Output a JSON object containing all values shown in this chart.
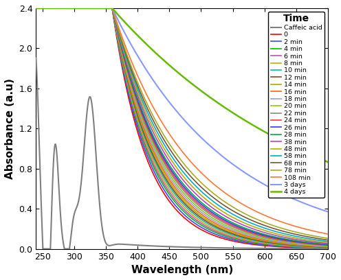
{
  "title": "Time",
  "xlabel": "Wavelength (nm)",
  "ylabel": "Absorbance (a.u)",
  "xlim": [
    240,
    700
  ],
  "ylim": [
    0.0,
    2.4
  ],
  "yticks": [
    0.0,
    0.4,
    0.8,
    1.2,
    1.6,
    2.0,
    2.4
  ],
  "xticks": [
    250,
    300,
    350,
    400,
    450,
    500,
    550,
    600,
    650,
    700
  ],
  "series": [
    {
      "label": "Caffeic acid",
      "color": "#808080",
      "lw": 1.5,
      "type": "caffeic"
    },
    {
      "label": "0",
      "color": "#FF0000",
      "lw": 1.2,
      "type": "nanoparticle",
      "decay": 0.018
    },
    {
      "label": "2 min",
      "color": "#4444FF",
      "lw": 1.2,
      "type": "nanoparticle",
      "decay": 0.0172
    },
    {
      "label": "4 min",
      "color": "#00BB00",
      "lw": 1.2,
      "type": "nanoparticle",
      "decay": 0.0165
    },
    {
      "label": "6 min",
      "color": "#CC44CC",
      "lw": 1.2,
      "type": "nanoparticle",
      "decay": 0.016
    },
    {
      "label": "8 min",
      "color": "#CCAA00",
      "lw": 1.2,
      "type": "nanoparticle",
      "decay": 0.0155
    },
    {
      "label": "10 min",
      "color": "#00BBBB",
      "lw": 1.2,
      "type": "nanoparticle",
      "decay": 0.015
    },
    {
      "label": "12 min",
      "color": "#884422",
      "lw": 1.2,
      "type": "nanoparticle",
      "decay": 0.0146
    },
    {
      "label": "14 min",
      "color": "#AAAA00",
      "lw": 1.2,
      "type": "nanoparticle",
      "decay": 0.0142
    },
    {
      "label": "16 min",
      "color": "#FF6600",
      "lw": 1.2,
      "type": "nanoparticle",
      "decay": 0.0138
    },
    {
      "label": "18 min",
      "color": "#9999EE",
      "lw": 1.2,
      "type": "nanoparticle",
      "decay": 0.0134
    },
    {
      "label": "20 min",
      "color": "#88CC00",
      "lw": 1.2,
      "type": "nanoparticle",
      "decay": 0.013
    },
    {
      "label": "22 min",
      "color": "#888888",
      "lw": 1.2,
      "type": "nanoparticle",
      "decay": 0.0126
    },
    {
      "label": "24 min",
      "color": "#FF3333",
      "lw": 1.2,
      "type": "nanoparticle",
      "decay": 0.0123
    },
    {
      "label": "26 min",
      "color": "#3333FF",
      "lw": 1.2,
      "type": "nanoparticle",
      "decay": 0.012
    },
    {
      "label": "28 min",
      "color": "#00AA44",
      "lw": 1.2,
      "type": "nanoparticle",
      "decay": 0.0117
    },
    {
      "label": "38 min",
      "color": "#BB44BB",
      "lw": 1.2,
      "type": "nanoparticle",
      "decay": 0.0112
    },
    {
      "label": "48 min",
      "color": "#BBAA00",
      "lw": 1.2,
      "type": "nanoparticle",
      "decay": 0.0107
    },
    {
      "label": "58 min",
      "color": "#00AACC",
      "lw": 1.2,
      "type": "nanoparticle",
      "decay": 0.0102
    },
    {
      "label": "68 min",
      "color": "#775533",
      "lw": 1.2,
      "type": "nanoparticle",
      "decay": 0.0097
    },
    {
      "label": "78 min",
      "color": "#AAAA22",
      "lw": 1.2,
      "type": "nanoparticle",
      "decay": 0.0092
    },
    {
      "label": "108 min",
      "color": "#FF7733",
      "lw": 1.2,
      "type": "nanoparticle",
      "decay": 0.0082
    },
    {
      "label": "3 days",
      "color": "#8899FF",
      "lw": 1.5,
      "type": "nanoparticle",
      "decay": 0.0055
    },
    {
      "label": "4 days",
      "color": "#66BB00",
      "lw": 1.8,
      "type": "nanoparticle",
      "decay": 0.003
    }
  ]
}
